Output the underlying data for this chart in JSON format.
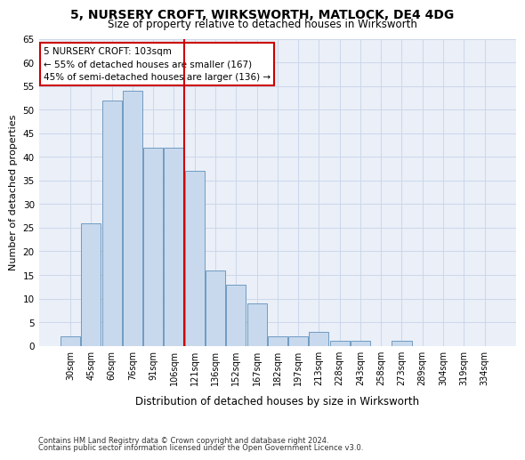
{
  "title1": "5, NURSERY CROFT, WIRKSWORTH, MATLOCK, DE4 4DG",
  "title2": "Size of property relative to detached houses in Wirksworth",
  "xlabel": "Distribution of detached houses by size in Wirksworth",
  "ylabel": "Number of detached properties",
  "categories": [
    "30sqm",
    "45sqm",
    "60sqm",
    "76sqm",
    "91sqm",
    "106sqm",
    "121sqm",
    "136sqm",
    "152sqm",
    "167sqm",
    "182sqm",
    "197sqm",
    "213sqm",
    "228sqm",
    "243sqm",
    "258sqm",
    "273sqm",
    "289sqm",
    "304sqm",
    "319sqm",
    "334sqm"
  ],
  "values": [
    2,
    26,
    52,
    54,
    42,
    42,
    37,
    16,
    13,
    9,
    2,
    2,
    3,
    1,
    1,
    0,
    1,
    0,
    0,
    0,
    0
  ],
  "bar_color": "#c8d9ed",
  "bar_edge_color": "#6090bb",
  "bar_width": 0.95,
  "vline_x": 5.5,
  "vline_color": "#cc0000",
  "annotation_text": "5 NURSERY CROFT: 103sqm\n← 55% of detached houses are smaller (167)\n45% of semi-detached houses are larger (136) →",
  "annotation_box_color": "#ffffff",
  "annotation_box_edgecolor": "#cc0000",
  "ylim": [
    0,
    65
  ],
  "yticks": [
    0,
    5,
    10,
    15,
    20,
    25,
    30,
    35,
    40,
    45,
    50,
    55,
    60,
    65
  ],
  "footnote1": "Contains HM Land Registry data © Crown copyright and database right 2024.",
  "footnote2": "Contains public sector information licensed under the Open Government Licence v3.0.",
  "grid_color": "#c8d4e8",
  "bg_color": "#eaeff8"
}
